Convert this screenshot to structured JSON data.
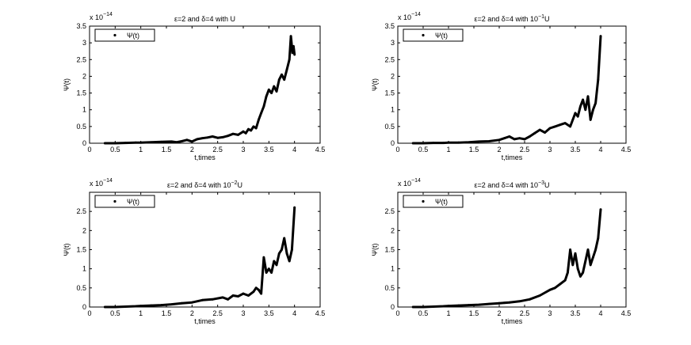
{
  "chart_data": [
    {
      "type": "line",
      "title_parts": [
        "ε=2 and δ=4 with U",
        "",
        ""
      ],
      "xlabel": "t,times",
      "ylabel": "Ψ(t)",
      "y_multiplier": [
        "x 10",
        "−14"
      ],
      "legend": "Ψ(t)",
      "legend_position": "top-left",
      "xlim": [
        0,
        4.5
      ],
      "ylim": [
        0,
        3.5
      ],
      "xticks": [
        "0",
        "0.5",
        "1",
        "1.5",
        "2",
        "2.5",
        "3",
        "3.5",
        "4",
        "4.5"
      ],
      "yticks": [
        "0",
        "0.5",
        "1",
        "1.5",
        "2",
        "2.5",
        "3",
        "3.5"
      ],
      "series": [
        {
          "name": "Ψ(t)",
          "x": [
            0.3,
            0.5,
            0.7,
            0.9,
            1.0,
            1.2,
            1.4,
            1.6,
            1.7,
            1.8,
            1.9,
            2.0,
            2.1,
            2.2,
            2.3,
            2.4,
            2.5,
            2.6,
            2.7,
            2.8,
            2.9,
            3.0,
            3.05,
            3.1,
            3.15,
            3.2,
            3.25,
            3.3,
            3.35,
            3.4,
            3.45,
            3.5,
            3.55,
            3.6,
            3.65,
            3.7,
            3.75,
            3.8,
            3.85,
            3.9,
            3.93,
            3.96,
            3.98,
            4.0
          ],
          "values": [
            0,
            0,
            0.01,
            0.02,
            0.02,
            0.03,
            0.04,
            0.05,
            0.03,
            0.06,
            0.1,
            0.05,
            0.12,
            0.15,
            0.17,
            0.2,
            0.16,
            0.18,
            0.22,
            0.28,
            0.25,
            0.35,
            0.3,
            0.42,
            0.38,
            0.5,
            0.45,
            0.7,
            0.9,
            1.1,
            1.4,
            1.6,
            1.5,
            1.7,
            1.55,
            1.9,
            2.05,
            1.9,
            2.2,
            2.5,
            3.2,
            2.7,
            2.9,
            2.65
          ]
        }
      ]
    },
    {
      "type": "line",
      "title_parts": [
        "ε=2 and δ=4 with 10",
        "−1",
        "U"
      ],
      "xlabel": "t,times",
      "ylabel": "Ψ(t)",
      "y_multiplier": [
        "x 10",
        "−14"
      ],
      "legend": "Ψ(t)",
      "legend_position": "top-left",
      "xlim": [
        0,
        4.5
      ],
      "ylim": [
        0,
        3.5
      ],
      "xticks": [
        "0",
        "0.5",
        "1",
        "1.5",
        "2",
        "2.5",
        "3",
        "3.5",
        "4",
        "4.5"
      ],
      "yticks": [
        "0",
        "0.5",
        "1",
        "1.5",
        "2",
        "2.5",
        "3",
        "3.5"
      ],
      "series": [
        {
          "name": "Ψ(t)",
          "x": [
            0.3,
            0.5,
            0.7,
            0.9,
            1.0,
            1.2,
            1.4,
            1.6,
            1.8,
            2.0,
            2.1,
            2.2,
            2.3,
            2.4,
            2.5,
            2.6,
            2.7,
            2.8,
            2.9,
            3.0,
            3.1,
            3.2,
            3.3,
            3.4,
            3.45,
            3.5,
            3.55,
            3.6,
            3.65,
            3.7,
            3.75,
            3.8,
            3.85,
            3.9,
            3.95,
            4.0
          ],
          "values": [
            0,
            0,
            0.01,
            0.01,
            0.02,
            0.02,
            0.03,
            0.05,
            0.06,
            0.1,
            0.15,
            0.2,
            0.12,
            0.15,
            0.12,
            0.2,
            0.3,
            0.4,
            0.32,
            0.45,
            0.5,
            0.55,
            0.6,
            0.5,
            0.7,
            0.9,
            0.8,
            1.1,
            1.3,
            1.0,
            1.4,
            0.7,
            1.0,
            1.2,
            1.9,
            3.2
          ]
        }
      ]
    },
    {
      "type": "line",
      "title_parts": [
        "ε=2 and δ=4 with 10",
        "−2",
        "U"
      ],
      "xlabel": "t,times",
      "ylabel": "Ψ(t)",
      "y_multiplier": [
        "x 10",
        "−14"
      ],
      "legend": "Ψ(t)",
      "legend_position": "top-left",
      "xlim": [
        0,
        4.5
      ],
      "ylim": [
        0,
        3.0
      ],
      "xticks": [
        "0",
        "0.5",
        "1",
        "1.5",
        "2",
        "2.5",
        "3",
        "3.5",
        "4",
        "4.5"
      ],
      "yticks": [
        "0",
        "0.5",
        "1",
        "1.5",
        "2",
        "2.5"
      ],
      "series": [
        {
          "name": "Ψ(t)",
          "x": [
            0.3,
            0.5,
            0.7,
            0.9,
            1.0,
            1.2,
            1.4,
            1.6,
            1.8,
            2.0,
            2.2,
            2.4,
            2.6,
            2.7,
            2.8,
            2.9,
            3.0,
            3.1,
            3.2,
            3.25,
            3.3,
            3.35,
            3.4,
            3.45,
            3.5,
            3.55,
            3.6,
            3.65,
            3.7,
            3.75,
            3.8,
            3.85,
            3.9,
            3.95,
            4.0
          ],
          "values": [
            0,
            0,
            0.01,
            0.02,
            0.03,
            0.04,
            0.05,
            0.07,
            0.1,
            0.12,
            0.18,
            0.2,
            0.25,
            0.2,
            0.3,
            0.28,
            0.35,
            0.3,
            0.4,
            0.5,
            0.45,
            0.35,
            1.3,
            0.9,
            1.0,
            0.9,
            1.2,
            1.1,
            1.4,
            1.5,
            1.8,
            1.4,
            1.2,
            1.5,
            2.6
          ]
        }
      ]
    },
    {
      "type": "line",
      "title_parts": [
        "ε=2 and δ=4 with 10",
        "−3",
        "U"
      ],
      "xlabel": "t,times",
      "ylabel": "Ψ(t)",
      "y_multiplier": [
        "x 10",
        "−14"
      ],
      "legend": "Ψ(t)",
      "legend_position": "top-left",
      "xlim": [
        0,
        4.5
      ],
      "ylim": [
        0,
        3.0
      ],
      "xticks": [
        "0",
        "0.5",
        "1",
        "1.5",
        "2",
        "2.5",
        "3",
        "3.5",
        "4",
        "4.5"
      ],
      "yticks": [
        "0",
        "0.5",
        "1",
        "1.5",
        "2",
        "2.5"
      ],
      "series": [
        {
          "name": "Ψ(t)",
          "x": [
            0.3,
            0.5,
            0.7,
            0.9,
            1.0,
            1.2,
            1.4,
            1.6,
            1.8,
            2.0,
            2.2,
            2.4,
            2.6,
            2.8,
            3.0,
            3.1,
            3.2,
            3.3,
            3.35,
            3.4,
            3.45,
            3.5,
            3.55,
            3.6,
            3.65,
            3.7,
            3.75,
            3.8,
            3.85,
            3.9,
            3.95,
            4.0
          ],
          "values": [
            0,
            0,
            0.01,
            0.02,
            0.03,
            0.04,
            0.05,
            0.06,
            0.08,
            0.1,
            0.12,
            0.15,
            0.2,
            0.3,
            0.45,
            0.5,
            0.6,
            0.7,
            0.9,
            1.5,
            1.1,
            1.4,
            1.0,
            0.8,
            0.9,
            1.2,
            1.5,
            1.1,
            1.3,
            1.5,
            1.8,
            2.55
          ]
        }
      ]
    }
  ]
}
